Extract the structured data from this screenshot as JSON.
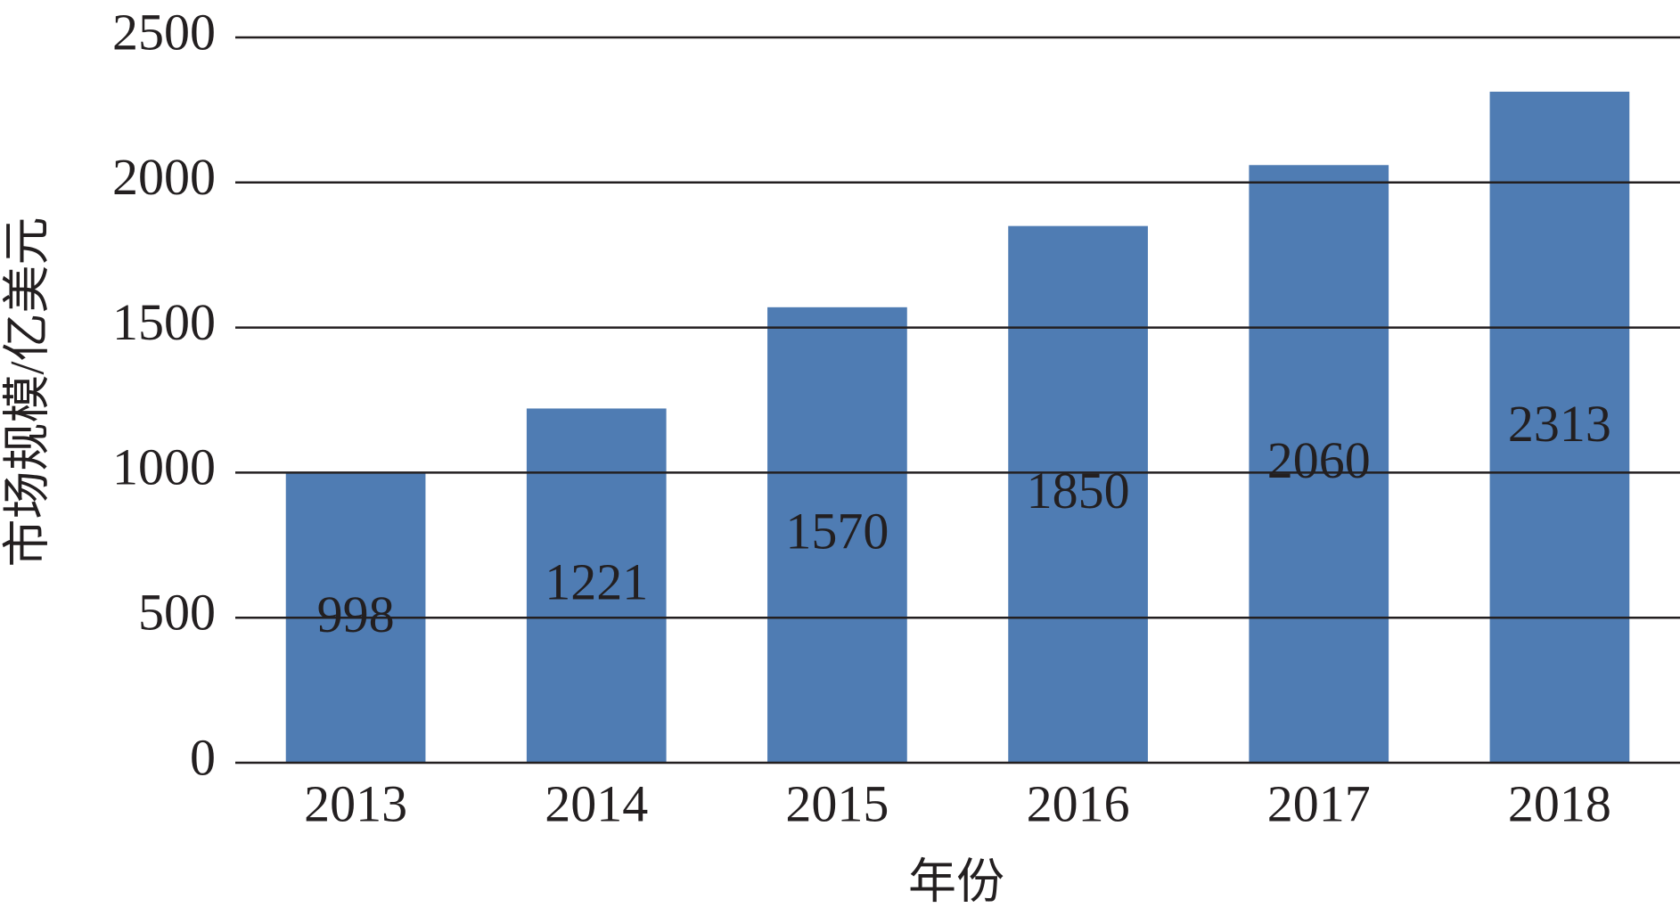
{
  "chart_data": {
    "type": "bar",
    "x_label": "年份",
    "y_label": "市场规模/亿美元",
    "categories": [
      "2013",
      "2014",
      "2015",
      "2016",
      "2017",
      "2018"
    ],
    "values": [
      998,
      1221,
      1570,
      1850,
      2060,
      2313
    ],
    "color": "#4f7cb3",
    "ylim": [
      0,
      2500
    ],
    "yticks": [
      0,
      500,
      1000,
      1500,
      2000,
      2500
    ],
    "grid": true
  }
}
